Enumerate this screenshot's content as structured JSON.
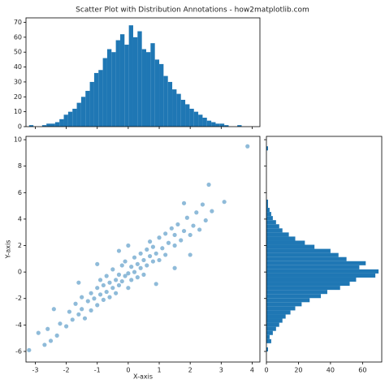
{
  "title": "Scatter Plot with Distribution Annotations - how2matplotlib.com",
  "chart_data": [
    {
      "type": "histogram",
      "orientation": "vertical",
      "color": "#1f77b4",
      "bins": [
        -3.2,
        -3.06,
        -2.92,
        -2.78,
        -2.64,
        -2.5,
        -2.36,
        -2.22,
        -2.08,
        -1.94,
        -1.8,
        -1.66,
        -1.52,
        -1.38,
        -1.24,
        -1.1,
        -0.96,
        -0.82,
        -0.68,
        -0.54,
        -0.4,
        -0.26,
        -0.12,
        0.02,
        0.16,
        0.3,
        0.44,
        0.58,
        0.72,
        0.86,
        1.0,
        1.14,
        1.28,
        1.42,
        1.56,
        1.7,
        1.84,
        1.98,
        2.12,
        2.26,
        2.4,
        2.54,
        2.68,
        2.82,
        2.96,
        3.1,
        3.24,
        3.38,
        3.52,
        3.66,
        3.8
      ],
      "values": [
        1,
        0,
        0,
        1,
        2,
        2,
        3,
        5,
        8,
        10,
        12,
        16,
        20,
        24,
        30,
        36,
        38,
        46,
        52,
        50,
        58,
        62,
        55,
        68,
        60,
        64,
        52,
        50,
        56,
        45,
        42,
        34,
        30,
        25,
        22,
        18,
        15,
        12,
        10,
        8,
        6,
        4,
        3,
        2,
        2,
        1,
        0,
        0,
        1,
        0
      ],
      "xlim": [
        -3.3,
        4.25
      ],
      "xticks": [
        -3,
        -2,
        -1,
        0,
        1,
        2,
        3,
        4
      ],
      "ylim": [
        0,
        73
      ],
      "yticks": [
        0,
        10,
        20,
        30,
        40,
        50,
        60,
        70
      ]
    },
    {
      "type": "scatter",
      "color": "#1f77b4",
      "x_label": "X-axis",
      "y_label": "Y-axis",
      "x": [
        -3.2,
        -2.7,
        -2.5,
        -2.6,
        -2.3,
        -2.2,
        -2.0,
        -1.9,
        -1.8,
        -1.7,
        -1.6,
        -1.5,
        -1.5,
        -1.4,
        -1.3,
        -1.2,
        -1.2,
        -1.1,
        -1.0,
        -1.0,
        -0.9,
        -0.9,
        -0.8,
        -0.8,
        -0.7,
        -0.7,
        -0.6,
        -0.6,
        -0.5,
        -0.5,
        -0.4,
        -0.4,
        -0.3,
        -0.3,
        -0.2,
        -0.2,
        -0.1,
        -0.1,
        0.0,
        0.0,
        0.1,
        0.1,
        0.2,
        0.2,
        0.3,
        0.3,
        0.4,
        0.4,
        0.5,
        0.5,
        0.6,
        0.6,
        0.7,
        0.7,
        0.8,
        0.8,
        0.9,
        1.0,
        1.0,
        1.1,
        1.2,
        1.2,
        1.3,
        1.4,
        1.5,
        1.5,
        1.6,
        1.7,
        1.8,
        1.9,
        2.0,
        2.1,
        2.2,
        2.3,
        2.4,
        2.5,
        2.6,
        2.7,
        3.1,
        3.85,
        -2.9,
        -1.0,
        0.9,
        1.5,
        -0.3,
        -1.6,
        2.0,
        -2.4,
        0.0,
        1.8
      ],
      "y": [
        -5.9,
        -5.5,
        -5.2,
        -4.3,
        -4.8,
        -3.9,
        -4.1,
        -3.0,
        -3.6,
        -2.4,
        -3.2,
        -2.8,
        -1.9,
        -3.5,
        -2.2,
        -1.6,
        -2.9,
        -2.0,
        -1.2,
        -2.5,
        -1.7,
        -0.6,
        -2.1,
        -1.0,
        -1.5,
        -0.3,
        -1.9,
        -0.8,
        -1.2,
        0.2,
        -0.6,
        -1.6,
        -0.2,
        -1.0,
        0.5,
        -0.7,
        -0.3,
        0.8,
        -0.1,
        -1.2,
        0.4,
        -0.6,
        1.1,
        0.0,
        0.6,
        -0.4,
        1.4,
        0.3,
        0.9,
        -0.2,
        1.7,
        0.5,
        1.2,
        2.3,
        0.8,
        1.9,
        1.4,
        2.6,
        0.9,
        1.8,
        2.9,
        1.3,
        2.2,
        3.3,
        2.0,
        2.8,
        3.6,
        2.4,
        3.1,
        4.1,
        2.8,
        3.5,
        4.5,
        3.2,
        5.1,
        3.9,
        6.6,
        4.6,
        5.3,
        9.5,
        -4.6,
        0.6,
        -0.9,
        0.3,
        1.6,
        -0.8,
        1.3,
        -2.8,
        2.0,
        5.2
      ],
      "xlim": [
        -3.3,
        4.25
      ],
      "xticks": [
        -3,
        -2,
        -1,
        0,
        1,
        2,
        3,
        4
      ],
      "ylim": [
        -6.8,
        10.25
      ],
      "yticks": [
        -6,
        -4,
        -2,
        0,
        2,
        4,
        6,
        8,
        10
      ]
    },
    {
      "type": "histogram",
      "orientation": "horizontal",
      "color": "#1f77b4",
      "bins": [
        -6.0,
        -5.69,
        -5.38,
        -5.07,
        -4.76,
        -4.45,
        -4.14,
        -3.83,
        -3.52,
        -3.21,
        -2.9,
        -2.59,
        -2.28,
        -1.97,
        -1.66,
        -1.35,
        -1.04,
        -0.73,
        -0.42,
        -0.11,
        0.2,
        0.51,
        0.82,
        1.13,
        1.44,
        1.75,
        2.06,
        2.37,
        2.68,
        2.99,
        3.3,
        3.61,
        3.92,
        4.23,
        4.54,
        4.85,
        5.16,
        5.47,
        5.78,
        6.09,
        6.4,
        6.71,
        7.02,
        7.33,
        7.64,
        7.95,
        8.26,
        8.57,
        8.88,
        9.19,
        9.5
      ],
      "values": [
        1,
        0,
        3,
        2,
        4,
        6,
        8,
        10,
        12,
        15,
        18,
        22,
        27,
        34,
        38,
        46,
        52,
        56,
        68,
        70,
        58,
        62,
        50,
        45,
        40,
        30,
        24,
        18,
        14,
        10,
        8,
        6,
        4,
        3,
        2,
        1,
        1,
        0,
        0,
        0,
        0,
        0,
        0,
        0,
        0,
        0,
        0,
        0,
        0,
        1
      ],
      "xlim": [
        0,
        72
      ],
      "xticks": [
        0,
        20,
        40,
        60
      ],
      "ylim": [
        -6.8,
        10.25
      ],
      "yticks": [
        -6,
        -4,
        -2,
        0,
        2,
        4,
        6,
        8,
        10
      ]
    }
  ]
}
